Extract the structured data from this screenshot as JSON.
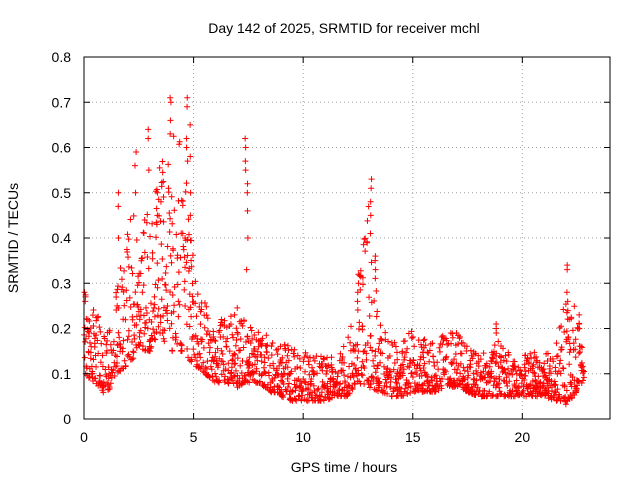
{
  "chart_data": {
    "type": "scatter",
    "title": "Day 142 of 2025, SRMTID for receiver mchl",
    "xlabel": "GPS time / hours",
    "ylabel": "SRMTID / TECUs",
    "xlim": [
      0,
      24
    ],
    "ylim": [
      0,
      0.8
    ],
    "x_ticks": [
      0,
      5,
      10,
      15,
      20
    ],
    "x_tick_labels": [
      "0",
      "5",
      "10",
      "15",
      "20"
    ],
    "y_ticks": [
      0,
      0.1,
      0.2,
      0.3,
      0.4,
      0.5,
      0.6,
      0.7,
      0.8
    ],
    "y_tick_labels": [
      "0",
      "0.1",
      "0.2",
      "0.3",
      "0.4",
      "0.5",
      "0.6",
      "0.7",
      "0.8"
    ],
    "grid": true,
    "marker": "plus",
    "color": "#ff0000",
    "envelope": {
      "description": "approximate per-hour value range of the scattered samples",
      "hours": [
        0,
        0.5,
        1,
        1.5,
        2,
        2.5,
        3,
        3.5,
        4,
        4.5,
        5,
        5.5,
        6,
        6.5,
        7,
        7.5,
        8,
        8.5,
        9,
        9.5,
        10,
        10.5,
        11,
        11.5,
        12,
        12.5,
        13,
        13.5,
        14,
        14.5,
        15,
        15.5,
        16,
        16.5,
        17,
        17.5,
        18,
        18.5,
        19,
        19.5,
        20,
        20.5,
        21,
        21.5,
        22,
        22.5,
        22.8
      ],
      "low": [
        0.1,
        0.08,
        0.05,
        0.1,
        0.12,
        0.15,
        0.15,
        0.18,
        0.15,
        0.15,
        0.12,
        0.1,
        0.08,
        0.08,
        0.07,
        0.08,
        0.08,
        0.06,
        0.05,
        0.04,
        0.04,
        0.04,
        0.04,
        0.05,
        0.05,
        0.08,
        0.07,
        0.06,
        0.05,
        0.05,
        0.06,
        0.06,
        0.06,
        0.07,
        0.07,
        0.06,
        0.05,
        0.05,
        0.05,
        0.05,
        0.05,
        0.05,
        0.05,
        0.04,
        0.03,
        0.06,
        0.08
      ],
      "high": [
        0.28,
        0.24,
        0.22,
        0.3,
        0.5,
        0.42,
        0.52,
        0.58,
        0.65,
        0.7,
        0.35,
        0.26,
        0.22,
        0.22,
        0.25,
        0.22,
        0.2,
        0.18,
        0.17,
        0.16,
        0.15,
        0.14,
        0.14,
        0.14,
        0.17,
        0.3,
        0.5,
        0.22,
        0.17,
        0.17,
        0.2,
        0.18,
        0.17,
        0.19,
        0.19,
        0.16,
        0.15,
        0.15,
        0.18,
        0.14,
        0.14,
        0.15,
        0.15,
        0.15,
        0.3,
        0.23,
        0.18
      ]
    },
    "spikes": [
      {
        "x": 0.05,
        "values": [
          0.28,
          0.27,
          0.26
        ]
      },
      {
        "x": 1.55,
        "values": [
          0.5,
          0.47,
          0.4
        ]
      },
      {
        "x": 2.35,
        "values": [
          0.59,
          0.56,
          0.5
        ]
      },
      {
        "x": 2.95,
        "values": [
          0.64,
          0.62,
          0.55
        ]
      },
      {
        "x": 3.35,
        "values": [
          0.5,
          0.45,
          0.43
        ]
      },
      {
        "x": 3.95,
        "values": [
          0.71,
          0.7,
          0.66,
          0.63
        ]
      },
      {
        "x": 4.7,
        "values": [
          0.71,
          0.69,
          0.62,
          0.6,
          0.57
        ]
      },
      {
        "x": 4.85,
        "values": [
          0.65,
          0.58,
          0.5,
          0.45
        ]
      },
      {
        "x": 7.35,
        "values": [
          0.62,
          0.6,
          0.57,
          0.55
        ]
      },
      {
        "x": 7.45,
        "values": [
          0.52,
          0.5,
          0.46,
          0.4,
          0.33
        ]
      },
      {
        "x": 12.5,
        "values": [
          0.32,
          0.3,
          0.28,
          0.26
        ]
      },
      {
        "x": 13.1,
        "values": [
          0.53,
          0.51,
          0.48,
          0.45,
          0.41
        ]
      },
      {
        "x": 13.3,
        "values": [
          0.36,
          0.35,
          0.33
        ]
      },
      {
        "x": 18.8,
        "values": [
          0.21,
          0.2,
          0.19
        ]
      },
      {
        "x": 22.05,
        "values": [
          0.34,
          0.33,
          0.28,
          0.26
        ]
      },
      {
        "x": 22.6,
        "values": [
          0.23,
          0.21,
          0.2
        ]
      }
    ]
  }
}
